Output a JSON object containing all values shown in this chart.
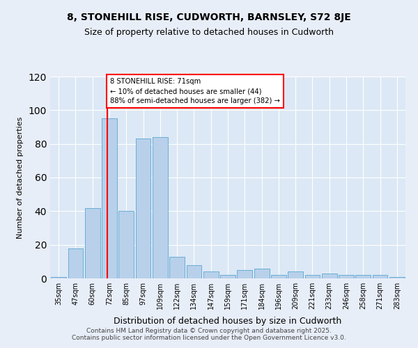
{
  "title1": "8, STONEHILL RISE, CUDWORTH, BARNSLEY, S72 8JE",
  "title2": "Size of property relative to detached houses in Cudworth",
  "xlabel": "Distribution of detached houses by size in Cudworth",
  "ylabel": "Number of detached properties",
  "categories": [
    "35sqm",
    "47sqm",
    "60sqm",
    "72sqm",
    "85sqm",
    "97sqm",
    "109sqm",
    "122sqm",
    "134sqm",
    "147sqm",
    "159sqm",
    "171sqm",
    "184sqm",
    "196sqm",
    "209sqm",
    "221sqm",
    "233sqm",
    "246sqm",
    "258sqm",
    "271sqm",
    "283sqm"
  ],
  "values": [
    1,
    18,
    42,
    95,
    40,
    83,
    84,
    13,
    8,
    4,
    2,
    5,
    6,
    2,
    4,
    2,
    3,
    2,
    2,
    2,
    1
  ],
  "bar_color": "#b8d0ea",
  "bar_edge_color": "#6aaed6",
  "annotation_text": "8 STONEHILL RISE: 71sqm\n← 10% of detached houses are smaller (44)\n88% of semi-detached houses are larger (382) →",
  "ylim": [
    0,
    120
  ],
  "background_color": "#e8eef8",
  "plot_bg_color": "#dce8f5",
  "footer": "Contains HM Land Registry data © Crown copyright and database right 2025.\nContains public sector information licensed under the Open Government Licence v3.0."
}
